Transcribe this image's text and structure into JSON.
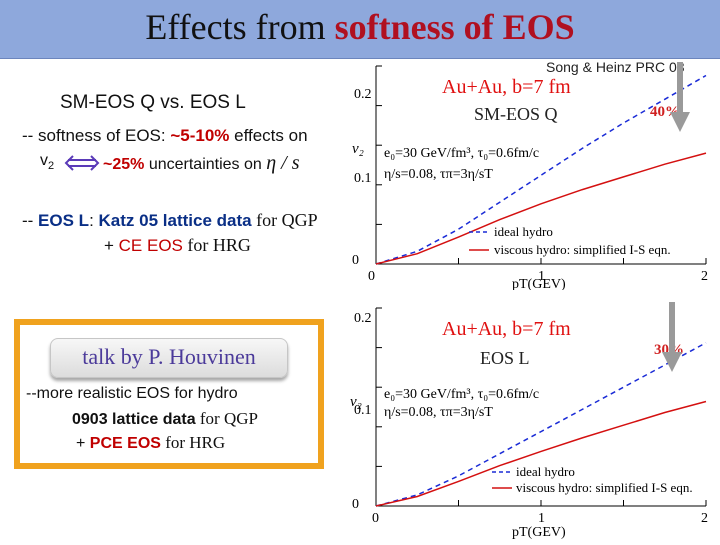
{
  "slide": {
    "title_prefix": "Effects from ",
    "title_accent": "softness of EOS",
    "citation": "Song & Heinz PRC 08",
    "compare": "SM-EOS Q vs. EOS L",
    "softness_line": {
      "prefix": "-- softness of EOS:  ",
      "pct": "~5-10%",
      "suffix": " effects on",
      "v2_label": "v",
      "v2_sub": "2",
      "pct2": "~25%",
      "suffix2": " uncertainties on ",
      "eta_s": "η / s"
    },
    "eos_l_line": {
      "prefix": "-- ",
      "label": "EOS L",
      "colon": ":  ",
      "katz": "Katz 05 lattice data",
      "katz_tail": " for QGP"
    },
    "ce_line": {
      "plus": "+ ",
      "ce": "CE EOS",
      "tail": " for HRG"
    },
    "talk": {
      "button": "talk by P. Houvinen",
      "line1": "--more realistic EOS for hydro",
      "line2_bold": "0903 lattice data",
      "line2_tail": " for QGP",
      "line3_plus": "+ ",
      "line3_bold": "PCE EOS",
      "line3_tail": " for HRG"
    },
    "colors": {
      "title_bar": "#8ea8dc",
      "accent": "#b01020",
      "box_border": "#f0a21e",
      "ideal": "#1a2bd6",
      "viscous": "#d41010"
    }
  },
  "plots": [
    {
      "system": "Au+Au, b=7 fm",
      "eos": "SM-EOS Q",
      "percent": "40%",
      "params1": "e₀=30 GeV/fm³,   τ₀=0.6fm/c",
      "params2": "η/s=0.08,    τπ=3η/sT",
      "ytick_02": "0.2",
      "ytick_01": "0.1",
      "ylabel": "v₂",
      "xtick_0": "0",
      "xtick_1": "1",
      "xtick_2": "2",
      "ytick_0": "0",
      "xlabel": "pT(GEV)",
      "legend_ideal": "ideal hydro",
      "legend_viscous": "viscous hydro: simplified I-S eqn."
    },
    {
      "system": "Au+Au, b=7 fm",
      "eos": "EOS L",
      "percent": "30%",
      "params1": "e₀=30 GeV/fm³,   τ₀=0.6fm/c",
      "params2": "η/s=0.08,    τπ=3η/sT",
      "ytick_02": "0.2",
      "ytick_01": "0.1",
      "ylabel": "v₂",
      "xtick_0": "0",
      "xtick_1": "1",
      "xtick_2": "2",
      "ytick_0": "0",
      "xlabel": "pT(GEV)",
      "legend_ideal": "ideal hydro",
      "legend_viscous": "viscous hydro: simplified I-S eqn."
    }
  ],
  "chart_data": [
    {
      "type": "line",
      "xlabel": "pT(GEV)",
      "ylabel": "v2",
      "xlim": [
        0,
        2
      ],
      "ylim": [
        0,
        0.25
      ],
      "series": [
        {
          "name": "ideal hydro",
          "x": [
            0,
            0.25,
            0.5,
            0.75,
            1.0,
            1.25,
            1.5,
            1.75,
            2.0
          ],
          "y": [
            0,
            0.016,
            0.044,
            0.078,
            0.112,
            0.146,
            0.178,
            0.208,
            0.238
          ]
        },
        {
          "name": "viscous hydro: simplified I-S eqn.",
          "x": [
            0,
            0.25,
            0.5,
            0.75,
            1.0,
            1.25,
            1.5,
            1.75,
            2.0
          ],
          "y": [
            0,
            0.013,
            0.034,
            0.056,
            0.076,
            0.094,
            0.11,
            0.126,
            0.14
          ]
        }
      ]
    },
    {
      "type": "line",
      "xlabel": "pT(GEV)",
      "ylabel": "v2",
      "xlim": [
        0,
        2
      ],
      "ylim": [
        0,
        0.25
      ],
      "series": [
        {
          "name": "ideal hydro",
          "x": [
            0,
            0.25,
            0.5,
            0.75,
            1.0,
            1.25,
            1.5,
            1.75,
            2.0
          ],
          "y": [
            0,
            0.014,
            0.038,
            0.066,
            0.094,
            0.122,
            0.15,
            0.178,
            0.206
          ]
        },
        {
          "name": "viscous hydro: simplified I-S eqn.",
          "x": [
            0,
            0.25,
            0.5,
            0.75,
            1.0,
            1.25,
            1.5,
            1.75,
            2.0
          ],
          "y": [
            0,
            0.012,
            0.031,
            0.051,
            0.069,
            0.086,
            0.102,
            0.118,
            0.132
          ]
        }
      ]
    }
  ]
}
